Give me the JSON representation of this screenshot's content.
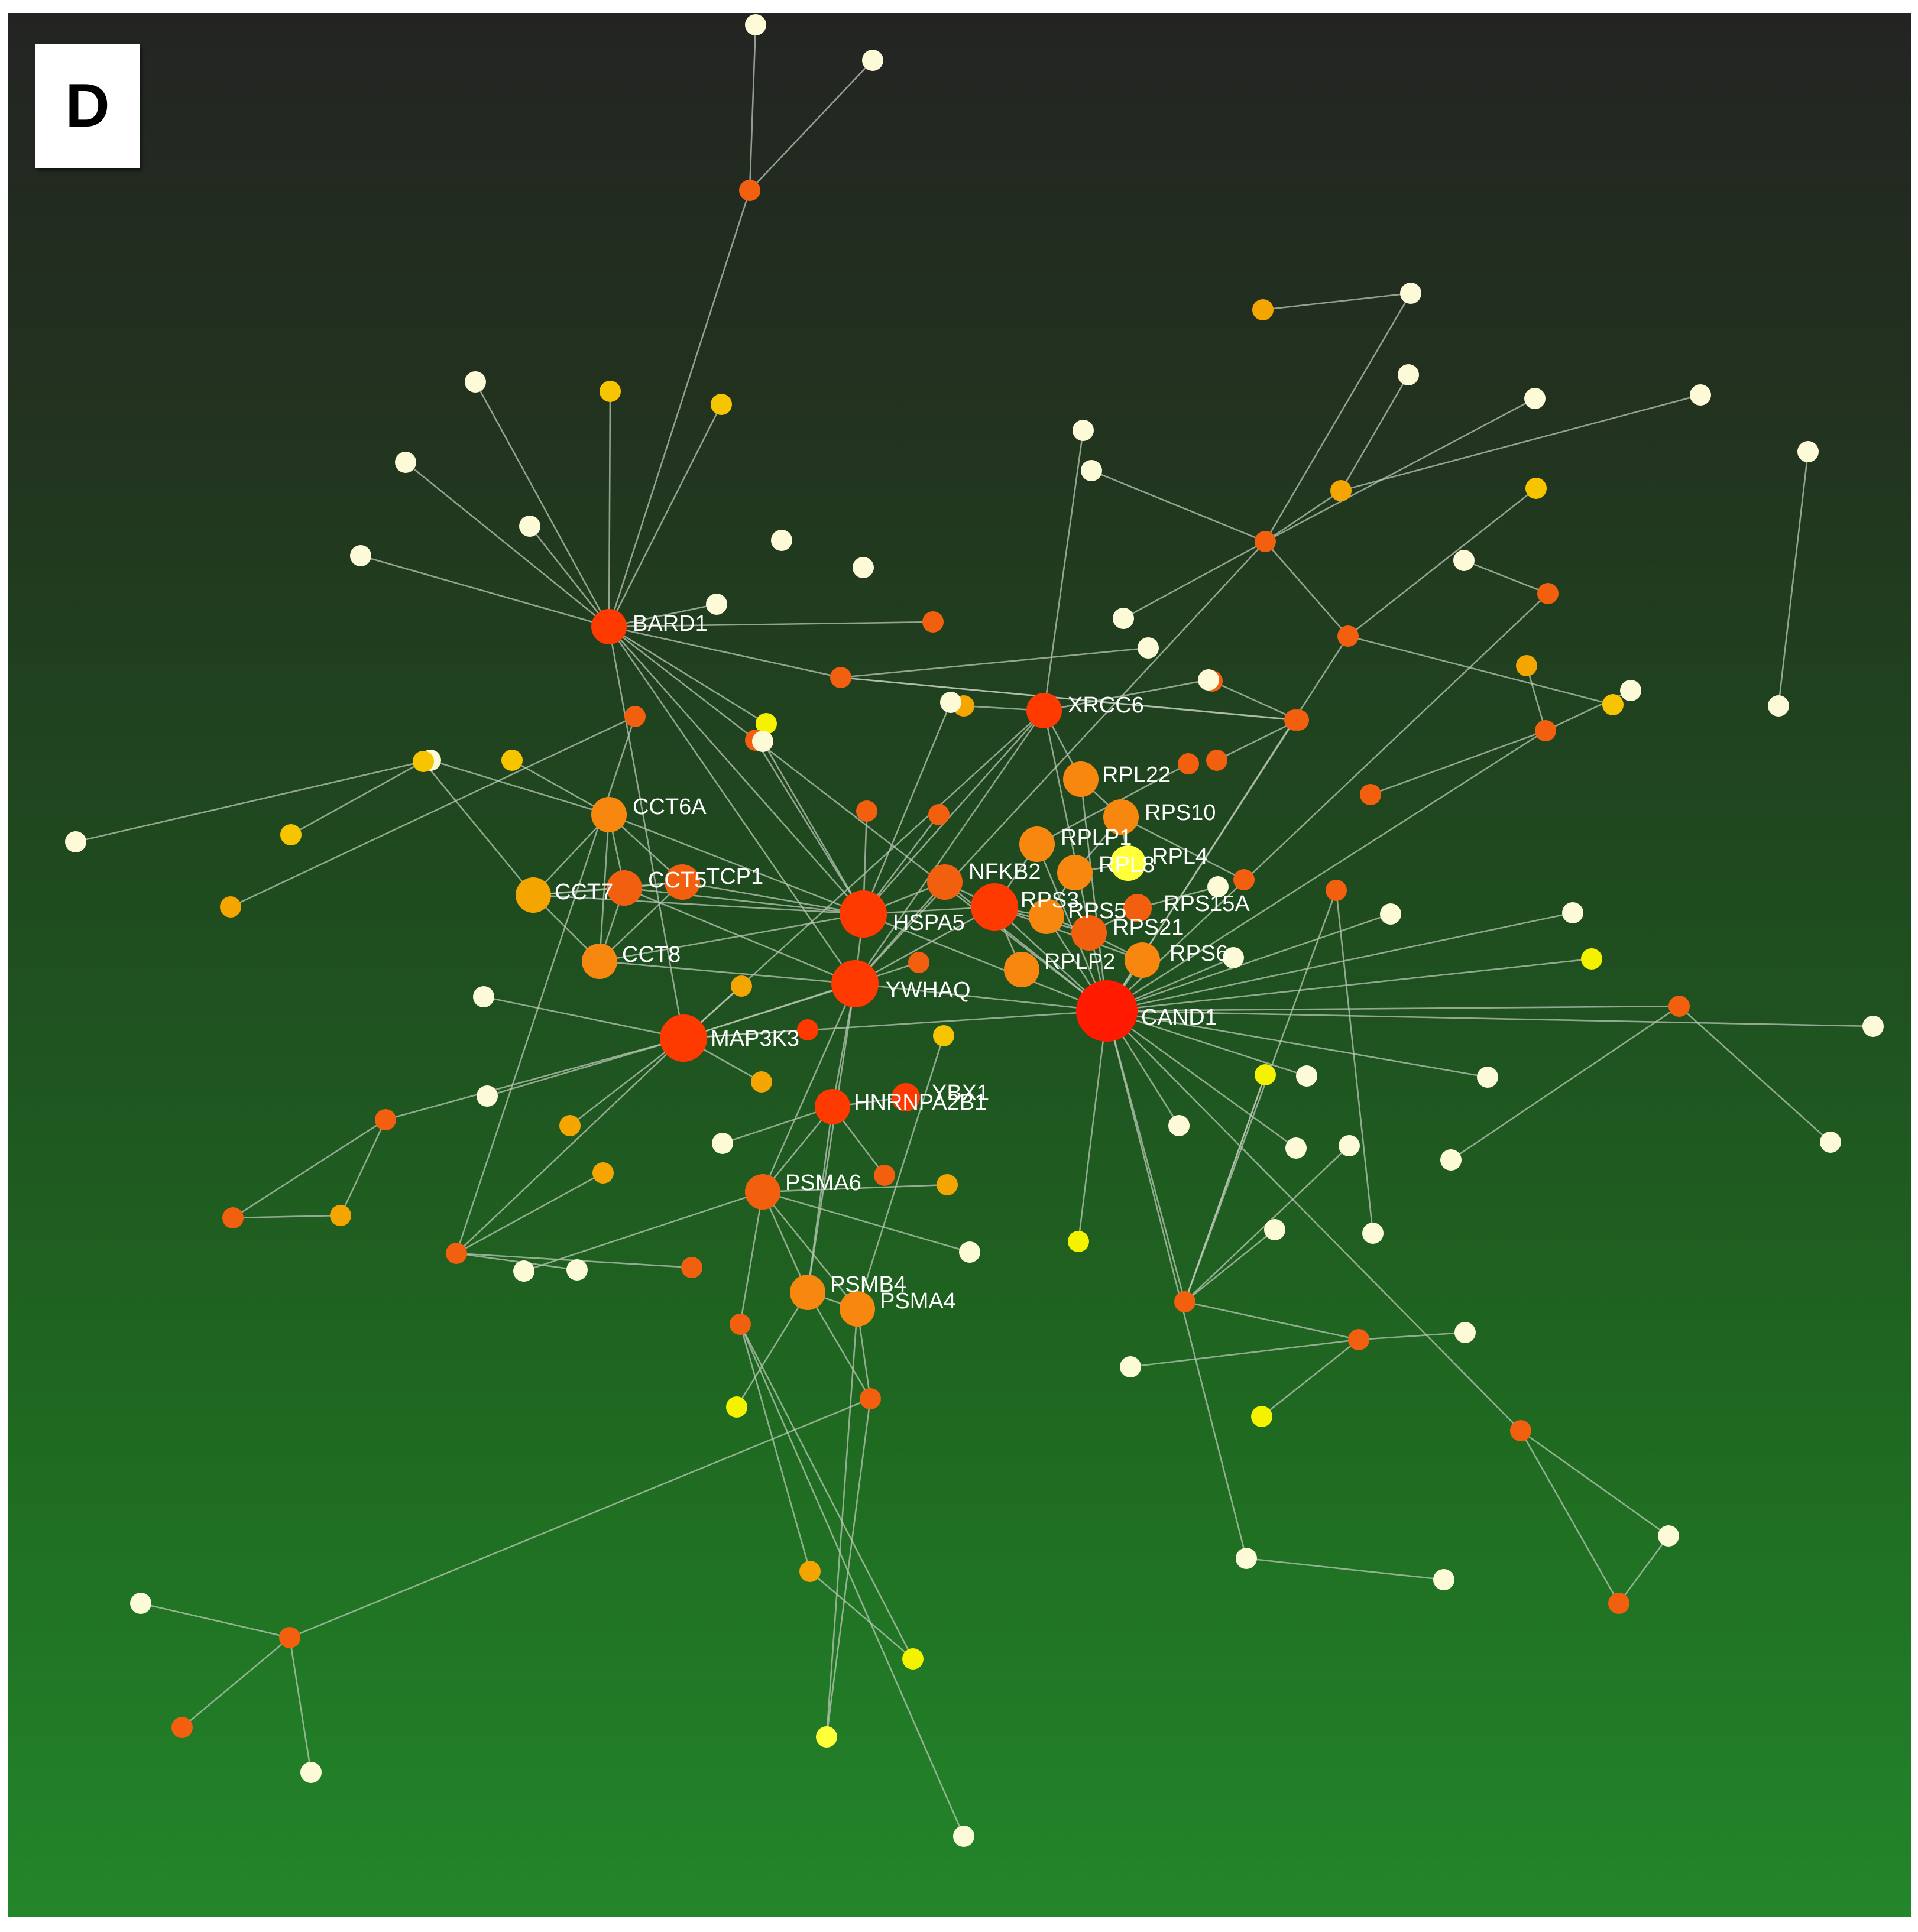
{
  "panel_label": "D",
  "colors": {
    "edge": "#b9c7b5",
    "node_palette": {
      "red": "#ff1a00",
      "red_orange": "#ff3a00",
      "dark_orange": "#f25f0e",
      "orange": "#f7870f",
      "amber": "#f5a500",
      "gold": "#f6c500",
      "yellow": "#f5f200",
      "light_yellow": "#ffff3a",
      "cream": "#fdfbd7"
    }
  },
  "nodes": [
    {
      "id": "cand1",
      "label": "CAND1",
      "color": "red",
      "size": "xl"
    },
    {
      "id": "ywhaq",
      "label": "YWHAQ",
      "color": "red_orange",
      "size": "lg"
    },
    {
      "id": "hspa5",
      "label": "HSPA5",
      "color": "red_orange",
      "size": "lg"
    },
    {
      "id": "map3k3",
      "label": "MAP3K3",
      "color": "red_orange",
      "size": "lg"
    },
    {
      "id": "bard1",
      "label": "BARD1",
      "color": "red_orange",
      "size": "md"
    },
    {
      "id": "xrcc6",
      "label": "XRCC6",
      "color": "red_orange",
      "size": "md"
    },
    {
      "id": "rps3",
      "label": "RPS3",
      "color": "red_orange",
      "size": "lg"
    },
    {
      "id": "nfkb2",
      "label": "NFKB2",
      "color": "dark_orange",
      "size": "md"
    },
    {
      "id": "rps5",
      "label": "RPS5",
      "color": "orange",
      "size": "md"
    },
    {
      "id": "rps21",
      "label": "RPS21",
      "color": "dark_orange",
      "size": "md"
    },
    {
      "id": "rps15a",
      "label": "RPS15A",
      "color": "dark_orange",
      "size": "sm"
    },
    {
      "id": "rps6",
      "label": "RPS6",
      "color": "orange",
      "size": "md"
    },
    {
      "id": "rplp2",
      "label": "RPLP2",
      "color": "orange",
      "size": "md"
    },
    {
      "id": "rplp1",
      "label": "RPLP1",
      "color": "orange",
      "size": "md"
    },
    {
      "id": "rpl8",
      "label": "RPL8",
      "color": "orange",
      "size": "md"
    },
    {
      "id": "rpl4",
      "label": "RPL4",
      "color": "light_yellow",
      "size": "md"
    },
    {
      "id": "rps10",
      "label": "RPS10",
      "color": "orange",
      "size": "md"
    },
    {
      "id": "rpl22",
      "label": "RPL22",
      "color": "orange",
      "size": "md"
    },
    {
      "id": "cct6a",
      "label": "CCT6A",
      "color": "orange",
      "size": "md"
    },
    {
      "id": "cct7",
      "label": "CCT7",
      "color": "amber",
      "size": "md"
    },
    {
      "id": "cct5",
      "label": "CCT5",
      "color": "dark_orange",
      "size": "md"
    },
    {
      "id": "tcp1",
      "label": "TCP1",
      "color": "dark_orange",
      "size": "md"
    },
    {
      "id": "cct8",
      "label": "CCT8",
      "color": "orange",
      "size": "md"
    },
    {
      "id": "hnrnpa2b1",
      "label": "HNRNPA2B1",
      "color": "red_orange",
      "size": "md"
    },
    {
      "id": "ybx1",
      "label": "YBX1",
      "color": "red_orange",
      "size": "sm"
    },
    {
      "id": "psma6",
      "label": "PSMA6",
      "color": "dark_orange",
      "size": "md"
    },
    {
      "id": "psmb4",
      "label": "PSMB4",
      "color": "orange",
      "size": "md"
    },
    {
      "id": "psma4",
      "label": "PSMA4",
      "color": "orange",
      "size": "md"
    }
  ],
  "minor_nodes": [
    {
      "id": "u1",
      "color": "cream"
    },
    {
      "id": "u2",
      "color": "cream"
    },
    {
      "id": "u3",
      "color": "dark_orange"
    },
    {
      "id": "u4",
      "color": "cream"
    },
    {
      "id": "u5",
      "color": "gold"
    },
    {
      "id": "u6",
      "color": "gold"
    },
    {
      "id": "u7",
      "color": "cream"
    },
    {
      "id": "u8",
      "color": "cream"
    },
    {
      "id": "u9",
      "color": "cream"
    },
    {
      "id": "u10",
      "color": "cream"
    },
    {
      "id": "u11",
      "color": "cream"
    },
    {
      "id": "u12",
      "color": "cream"
    },
    {
      "id": "u13",
      "color": "dark_orange"
    },
    {
      "id": "u14",
      "color": "dark_orange"
    },
    {
      "id": "u15",
      "color": "amber"
    },
    {
      "id": "u16",
      "color": "cream"
    },
    {
      "id": "u17",
      "color": "cream"
    },
    {
      "id": "u18",
      "color": "amber"
    },
    {
      "id": "u19",
      "color": "cream"
    },
    {
      "id": "u20",
      "color": "dark_orange"
    },
    {
      "id": "u21",
      "color": "cream"
    },
    {
      "id": "u22",
      "color": "gold"
    },
    {
      "id": "u23",
      "color": "gold"
    },
    {
      "id": "u24",
      "color": "cream"
    },
    {
      "id": "u25",
      "color": "cream"
    },
    {
      "id": "u26",
      "color": "cream"
    },
    {
      "id": "u27",
      "color": "cream"
    },
    {
      "id": "u28",
      "color": "dark_orange"
    },
    {
      "id": "u29",
      "color": "cream"
    },
    {
      "id": "u30",
      "color": "dark_orange"
    },
    {
      "id": "u31",
      "color": "dark_orange"
    },
    {
      "id": "u32",
      "color": "amber"
    },
    {
      "id": "u33",
      "color": "dark_orange"
    },
    {
      "id": "u34",
      "color": "cream"
    },
    {
      "id": "u35",
      "color": "dark_orange"
    },
    {
      "id": "u36",
      "color": "dark_orange"
    },
    {
      "id": "u37",
      "color": "cream"
    },
    {
      "id": "u38",
      "color": "dark_orange"
    },
    {
      "id": "u39",
      "color": "dark_orange"
    },
    {
      "id": "u40",
      "color": "cream"
    },
    {
      "id": "u41",
      "color": "amber"
    },
    {
      "id": "u42",
      "color": "cream"
    },
    {
      "id": "u43",
      "color": "dark_orange"
    },
    {
      "id": "u44",
      "color": "yellow"
    },
    {
      "id": "u45",
      "color": "dark_orange"
    },
    {
      "id": "u46",
      "color": "cream"
    },
    {
      "id": "u47",
      "color": "cream"
    },
    {
      "id": "u48",
      "color": "cream"
    },
    {
      "id": "u49",
      "color": "cream"
    },
    {
      "id": "u50",
      "color": "cream"
    },
    {
      "id": "u51",
      "color": "cream"
    },
    {
      "id": "u52",
      "color": "dark_orange"
    },
    {
      "id": "u53",
      "color": "yellow"
    },
    {
      "id": "u54",
      "color": "cream"
    },
    {
      "id": "u55",
      "color": "cream"
    },
    {
      "id": "u56",
      "color": "dark_orange"
    },
    {
      "id": "u57",
      "color": "yellow"
    },
    {
      "id": "u58",
      "color": "cream"
    },
    {
      "id": "u59",
      "color": "cream"
    },
    {
      "id": "u60",
      "color": "cream"
    },
    {
      "id": "u61",
      "color": "yellow"
    },
    {
      "id": "u62",
      "color": "cream"
    },
    {
      "id": "u63",
      "color": "dark_orange"
    },
    {
      "id": "u64",
      "color": "cream"
    },
    {
      "id": "u65",
      "color": "dark_orange"
    },
    {
      "id": "u66",
      "color": "yellow"
    },
    {
      "id": "u67",
      "color": "cream"
    },
    {
      "id": "u68",
      "color": "cream"
    },
    {
      "id": "u69",
      "color": "cream"
    },
    {
      "id": "u70",
      "color": "dark_orange"
    },
    {
      "id": "u71",
      "color": "cream"
    },
    {
      "id": "u72",
      "color": "dark_orange"
    },
    {
      "id": "u73",
      "color": "cream"
    },
    {
      "id": "u74",
      "color": "cream"
    },
    {
      "id": "u75",
      "color": "cream"
    },
    {
      "id": "u76",
      "color": "dark_orange"
    },
    {
      "id": "u77",
      "color": "dark_orange"
    },
    {
      "id": "u78",
      "color": "cream"
    },
    {
      "id": "u79",
      "color": "dark_orange"
    },
    {
      "id": "u80",
      "color": "gold"
    },
    {
      "id": "u81",
      "color": "cream"
    },
    {
      "id": "u82",
      "color": "gold"
    },
    {
      "id": "u83",
      "color": "cream"
    },
    {
      "id": "u84",
      "color": "gold"
    },
    {
      "id": "u85",
      "color": "dark_orange"
    },
    {
      "id": "u86",
      "color": "red_orange"
    },
    {
      "id": "u87",
      "color": "amber"
    },
    {
      "id": "u88",
      "color": "dark_orange"
    },
    {
      "id": "u89",
      "color": "cream"
    },
    {
      "id": "u90",
      "color": "amber"
    },
    {
      "id": "u91",
      "color": "cream"
    },
    {
      "id": "u92",
      "color": "amber"
    },
    {
      "id": "u93",
      "color": "dark_orange"
    },
    {
      "id": "u94",
      "color": "amber"
    },
    {
      "id": "u95",
      "color": "dark_orange"
    },
    {
      "id": "u96",
      "color": "amber"
    },
    {
      "id": "u97",
      "color": "dark_orange"
    },
    {
      "id": "u98",
      "color": "amber"
    },
    {
      "id": "u99",
      "color": "cream"
    },
    {
      "id": "u100",
      "color": "dark_orange"
    },
    {
      "id": "u101",
      "color": "dark_orange"
    },
    {
      "id": "u102",
      "color": "cream"
    },
    {
      "id": "u103",
      "color": "cream"
    },
    {
      "id": "u104",
      "color": "amber"
    },
    {
      "id": "u105",
      "color": "dark_orange"
    },
    {
      "id": "u106",
      "color": "cream"
    },
    {
      "id": "u107",
      "color": "yellow"
    },
    {
      "id": "u108",
      "color": "dark_orange"
    },
    {
      "id": "u109",
      "color": "light_yellow"
    },
    {
      "id": "u110",
      "color": "gold"
    },
    {
      "id": "u111",
      "color": "yellow"
    },
    {
      "id": "u112",
      "color": "cream"
    },
    {
      "id": "u113",
      "color": "amber"
    },
    {
      "id": "u114",
      "color": "dark_orange"
    },
    {
      "id": "u115",
      "color": "cream"
    },
    {
      "id": "u116",
      "color": "dark_orange"
    },
    {
      "id": "u117",
      "color": "cream"
    }
  ],
  "edges": [
    [
      "u3",
      "u1"
    ],
    [
      "u3",
      "u2"
    ],
    [
      "u3",
      "bard1"
    ],
    [
      "bard1",
      "u4"
    ],
    [
      "bard1",
      "u5"
    ],
    [
      "bard1",
      "u6"
    ],
    [
      "bard1",
      "u7"
    ],
    [
      "bard1",
      "u8"
    ],
    [
      "bard1",
      "u9"
    ],
    [
      "bard1",
      "u10"
    ],
    [
      "bard1",
      "u13"
    ],
    [
      "bard1",
      "hspa5"
    ],
    [
      "bard1",
      "ywhaq"
    ],
    [
      "bard1",
      "map3k3"
    ],
    [
      "bard1",
      "cand1"
    ],
    [
      "bard1",
      "u31"
    ],
    [
      "bard1",
      "u44"
    ],
    [
      "u14",
      "u15"
    ],
    [
      "u14",
      "u16"
    ],
    [
      "u15",
      "u17"
    ],
    [
      "u16",
      "u18"
    ],
    [
      "u14",
      "u19"
    ],
    [
      "u14",
      "u20"
    ],
    [
      "u14",
      "u21"
    ],
    [
      "u20",
      "u22"
    ],
    [
      "u20",
      "u23"
    ],
    [
      "u20",
      "cand1"
    ],
    [
      "u14",
      "ywhaq"
    ],
    [
      "u14",
      "u24"
    ],
    [
      "u15",
      "u25"
    ],
    [
      "u26",
      "u27"
    ],
    [
      "u28",
      "u29"
    ],
    [
      "u28",
      "cand1"
    ],
    [
      "u30",
      "u33"
    ],
    [
      "u30",
      "u34"
    ],
    [
      "u30",
      "u32"
    ],
    [
      "u30",
      "cand1"
    ],
    [
      "u31",
      "u35"
    ],
    [
      "u31",
      "u36"
    ],
    [
      "u31",
      "u37"
    ],
    [
      "u35",
      "cand1"
    ],
    [
      "u36",
      "u38"
    ],
    [
      "u36",
      "u39"
    ],
    [
      "xrcc6",
      "ywhaq"
    ],
    [
      "xrcc6",
      "hspa5"
    ],
    [
      "xrcc6",
      "u40"
    ],
    [
      "xrcc6",
      "u41"
    ],
    [
      "xrcc6",
      "u42"
    ],
    [
      "xrcc6",
      "map3k3"
    ],
    [
      "xrcc6",
      "cand1"
    ],
    [
      "xrcc6",
      "rpl22"
    ],
    [
      "rpl22",
      "rps10"
    ],
    [
      "rpl22",
      "cand1"
    ],
    [
      "rps10",
      "rpl4"
    ],
    [
      "rps10",
      "u43"
    ],
    [
      "rplp1",
      "u45"
    ],
    [
      "rplp1",
      "rps3"
    ],
    [
      "rplp1",
      "cand1"
    ],
    [
      "rps3",
      "rps5"
    ],
    [
      "rps3",
      "rps21"
    ],
    [
      "rps3",
      "rps6"
    ],
    [
      "rps3",
      "rplp2"
    ],
    [
      "rps3",
      "cand1"
    ],
    [
      "rps3",
      "hspa5"
    ],
    [
      "rps3",
      "ywhaq"
    ],
    [
      "rps5",
      "rps21"
    ],
    [
      "rps5",
      "rpl8"
    ],
    [
      "rps5",
      "cand1"
    ],
    [
      "rps21",
      "rps15a"
    ],
    [
      "rps21",
      "rps6"
    ],
    [
      "rps15a",
      "u46"
    ],
    [
      "rps6",
      "cand1"
    ],
    [
      "nfkb2",
      "hspa5"
    ],
    [
      "nfkb2",
      "ywhaq"
    ],
    [
      "nfkb2",
      "cand1"
    ],
    [
      "nfkb2",
      "rps3"
    ],
    [
      "rpl8",
      "rpl4"
    ],
    [
      "rpl8",
      "rps10"
    ],
    [
      "cand1",
      "ywhaq"
    ],
    [
      "cand1",
      "hspa5"
    ],
    [
      "cand1",
      "map3k3"
    ],
    [
      "cand1",
      "u47"
    ],
    [
      "cand1",
      "u48"
    ],
    [
      "cand1",
      "u49"
    ],
    [
      "cand1",
      "u50"
    ],
    [
      "cand1",
      "u51"
    ],
    [
      "cand1",
      "u52"
    ],
    [
      "cand1",
      "u53"
    ],
    [
      "cand1",
      "u54"
    ],
    [
      "cand1",
      "u56"
    ],
    [
      "cand1",
      "u57"
    ],
    [
      "cand1",
      "u59"
    ],
    [
      "cand1",
      "u60"
    ],
    [
      "u52",
      "u55"
    ],
    [
      "u52",
      "u58"
    ],
    [
      "u56",
      "u61"
    ],
    [
      "u56",
      "u62"
    ],
    [
      "u56",
      "u63"
    ],
    [
      "u56",
      "u64"
    ],
    [
      "u56",
      "u65"
    ],
    [
      "u65",
      "u66"
    ],
    [
      "u65",
      "u67"
    ],
    [
      "u65",
      "u68"
    ],
    [
      "u63",
      "u69"
    ],
    [
      "u70",
      "u71"
    ],
    [
      "u70",
      "u72"
    ],
    [
      "u71",
      "u72"
    ],
    [
      "u70",
      "cand1"
    ],
    [
      "u73",
      "u74"
    ],
    [
      "u73",
      "cand1"
    ],
    [
      "ywhaq",
      "hspa5"
    ],
    [
      "ywhaq",
      "map3k3"
    ],
    [
      "ywhaq",
      "hnrnpa2b1"
    ],
    [
      "ywhaq",
      "psma6"
    ],
    [
      "ywhaq",
      "psmb4"
    ],
    [
      "ywhaq",
      "cct5"
    ],
    [
      "ywhaq",
      "cct8"
    ],
    [
      "hspa5",
      "cct6a"
    ],
    [
      "hspa5",
      "cct7"
    ],
    [
      "hspa5",
      "cct5"
    ],
    [
      "hspa5",
      "tcp1"
    ],
    [
      "hspa5",
      "cct8"
    ],
    [
      "hspa5",
      "u75"
    ],
    [
      "hspa5",
      "u76"
    ],
    [
      "hspa5",
      "u77"
    ],
    [
      "hspa5",
      "u78"
    ],
    [
      "hspa5",
      "u79"
    ],
    [
      "cct6a",
      "cct7"
    ],
    [
      "cct6a",
      "cct5"
    ],
    [
      "cct6a",
      "tcp1"
    ],
    [
      "cct6a",
      "cct8"
    ],
    [
      "cct6a",
      "u80"
    ],
    [
      "cct6a",
      "u81"
    ],
    [
      "cct7",
      "cct5"
    ],
    [
      "cct7",
      "tcp1"
    ],
    [
      "cct7",
      "cct8"
    ],
    [
      "cct5",
      "tcp1"
    ],
    [
      "cct5",
      "cct8"
    ],
    [
      "tcp1",
      "cct8"
    ],
    [
      "u82",
      "u83"
    ],
    [
      "u82",
      "u84"
    ],
    [
      "u82",
      "cct7"
    ],
    [
      "map3k3",
      "u85"
    ],
    [
      "map3k3",
      "u86"
    ],
    [
      "map3k3",
      "u87"
    ],
    [
      "map3k3",
      "u88"
    ],
    [
      "map3k3",
      "u89"
    ],
    [
      "map3k3",
      "u90"
    ],
    [
      "map3k3",
      "u91"
    ],
    [
      "map3k3",
      "u92"
    ],
    [
      "u88",
      "u93"
    ],
    [
      "u88",
      "u94"
    ],
    [
      "u93",
      "u94"
    ],
    [
      "u95",
      "u96"
    ],
    [
      "u95",
      "u97"
    ],
    [
      "u97",
      "u98"
    ],
    [
      "u97",
      "u99"
    ],
    [
      "u97",
      "u100"
    ],
    [
      "u97",
      "map3k3"
    ],
    [
      "hnrnpa2b1",
      "ybx1"
    ],
    [
      "hnrnpa2b1",
      "psma6"
    ],
    [
      "hnrnpa2b1",
      "psmb4"
    ],
    [
      "hnrnpa2b1",
      "u101"
    ],
    [
      "hnrnpa2b1",
      "u102"
    ],
    [
      "psma6",
      "psmb4"
    ],
    [
      "psma6",
      "psma4"
    ],
    [
      "psma6",
      "u103"
    ],
    [
      "psma6",
      "u104"
    ],
    [
      "psma6",
      "u105"
    ],
    [
      "psma6",
      "u106"
    ],
    [
      "psmb4",
      "psma4"
    ],
    [
      "psmb4",
      "u107"
    ],
    [
      "psmb4",
      "u108"
    ],
    [
      "psma4",
      "u108"
    ],
    [
      "psma4",
      "u109"
    ],
    [
      "psma4",
      "u110"
    ],
    [
      "u105",
      "u111"
    ],
    [
      "u105",
      "u112"
    ],
    [
      "u105",
      "u113"
    ],
    [
      "u108",
      "u114"
    ],
    [
      "u114",
      "u115"
    ],
    [
      "u114",
      "u116"
    ],
    [
      "u114",
      "u117"
    ],
    [
      "u61",
      "u56"
    ],
    [
      "u109",
      "u108"
    ],
    [
      "u111",
      "u113"
    ]
  ]
}
